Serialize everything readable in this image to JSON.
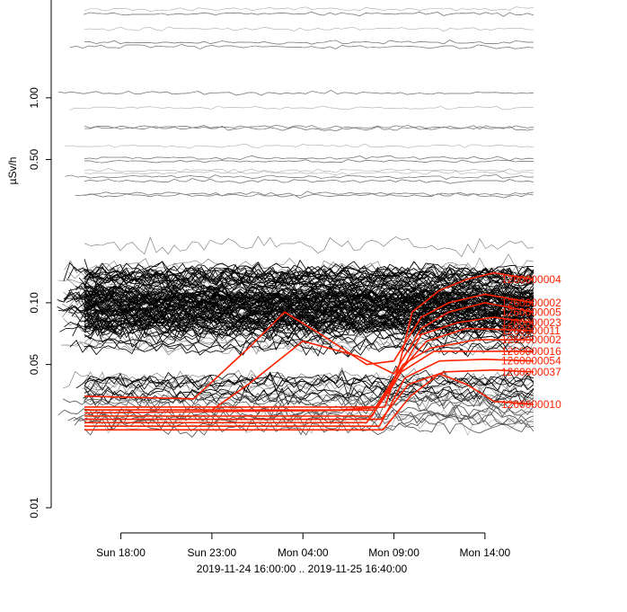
{
  "chart_data": {
    "type": "line",
    "title": "",
    "ylabel": "µSv/h",
    "xlabel": "2019-11-24 16:00:00 .. 2019-11-25 16:40:00",
    "y_scale": "log",
    "ylim": [
      0.01,
      3.0
    ],
    "y_ticks": [
      {
        "value": 0.01,
        "label": "0.01"
      },
      {
        "value": 0.05,
        "label": "0.05"
      },
      {
        "value": 0.1,
        "label": "0.10"
      },
      {
        "value": 0.5,
        "label": "0.50"
      },
      {
        "value": 1.0,
        "label": "1.00"
      }
    ],
    "x_range_hours": [
      0,
      24.67
    ],
    "x_ticks": [
      {
        "hour": 2,
        "label": "Sun 18:00"
      },
      {
        "hour": 7,
        "label": "Sun 23:00"
      },
      {
        "hour": 12,
        "label": "Mon 04:00"
      },
      {
        "hour": 17,
        "label": "Mon 09:00"
      },
      {
        "hour": 22,
        "label": "Mon 14:00"
      }
    ],
    "background_series_color": "#000000",
    "highlight_color": "#ff2200",
    "highlight_series": [
      {
        "name": "1260000004",
        "points": [
          [
            0,
            0.03
          ],
          [
            8,
            0.03
          ],
          [
            14,
            0.03
          ],
          [
            16.5,
            0.031
          ],
          [
            17.3,
            0.05
          ],
          [
            18,
            0.09
          ],
          [
            19.5,
            0.115
          ],
          [
            21,
            0.13
          ],
          [
            22.5,
            0.14
          ],
          [
            24.67,
            0.13
          ]
        ]
      },
      {
        "name": "1260000002",
        "points": [
          [
            0,
            0.035
          ],
          [
            6,
            0.034
          ],
          [
            9,
            0.06
          ],
          [
            11,
            0.09
          ],
          [
            13,
            0.07
          ],
          [
            15.5,
            0.05
          ],
          [
            17,
            0.052
          ],
          [
            18.5,
            0.085
          ],
          [
            20,
            0.1
          ],
          [
            22,
            0.11
          ],
          [
            24.67,
            0.1
          ]
        ]
      },
      {
        "name": "1260000005",
        "points": [
          [
            0,
            0.03
          ],
          [
            7,
            0.03
          ],
          [
            9,
            0.04
          ],
          [
            12,
            0.065
          ],
          [
            15,
            0.055
          ],
          [
            17,
            0.045
          ],
          [
            18.5,
            0.075
          ],
          [
            20,
            0.09
          ],
          [
            22,
            0.1
          ],
          [
            24.67,
            0.09
          ]
        ]
      },
      {
        "name": "1260000023",
        "points": [
          [
            0,
            0.026
          ],
          [
            15.5,
            0.026
          ],
          [
            17,
            0.04
          ],
          [
            18.5,
            0.07
          ],
          [
            20.5,
            0.08
          ],
          [
            22.5,
            0.085
          ],
          [
            24.67,
            0.08
          ]
        ]
      },
      {
        "name": "1260000011",
        "points": [
          [
            0,
            0.028
          ],
          [
            15.8,
            0.028
          ],
          [
            17.2,
            0.045
          ],
          [
            18.8,
            0.065
          ],
          [
            21,
            0.075
          ],
          [
            23,
            0.074
          ],
          [
            24.67,
            0.073
          ]
        ]
      },
      {
        "name": "1260000002",
        "points": [
          [
            0,
            0.031
          ],
          [
            16,
            0.031
          ],
          [
            17.5,
            0.05
          ],
          [
            19,
            0.06
          ],
          [
            21.5,
            0.066
          ],
          [
            24.67,
            0.066
          ]
        ]
      },
      {
        "name": "1260000016",
        "points": [
          [
            0,
            0.029
          ],
          [
            16,
            0.03
          ],
          [
            17.4,
            0.046
          ],
          [
            19.2,
            0.058
          ],
          [
            22,
            0.058
          ],
          [
            24.67,
            0.058
          ]
        ]
      },
      {
        "name": "1260000054",
        "points": [
          [
            0,
            0.025
          ],
          [
            16.2,
            0.025
          ],
          [
            17.6,
            0.043
          ],
          [
            19.5,
            0.052
          ],
          [
            22,
            0.053
          ],
          [
            24.67,
            0.052
          ]
        ]
      },
      {
        "name": "1260000037",
        "points": [
          [
            0,
            0.027
          ],
          [
            16.3,
            0.027
          ],
          [
            17.8,
            0.04
          ],
          [
            19.8,
            0.046
          ],
          [
            22.5,
            0.047
          ],
          [
            24.67,
            0.046
          ]
        ]
      },
      {
        "name": "1260000010",
        "points": [
          [
            0,
            0.024
          ],
          [
            16.4,
            0.024
          ],
          [
            17.9,
            0.035
          ],
          [
            19.5,
            0.045
          ],
          [
            21,
            0.04
          ],
          [
            22.5,
            0.033
          ],
          [
            24.67,
            0.032
          ]
        ]
      }
    ],
    "series_labels_shown": [
      "1260000004",
      "1260000002",
      "1260000005",
      "1260000023",
      "1260000011",
      "1260000002",
      "1260000016",
      "1260000054",
      "1260000037",
      "1260000010"
    ]
  }
}
